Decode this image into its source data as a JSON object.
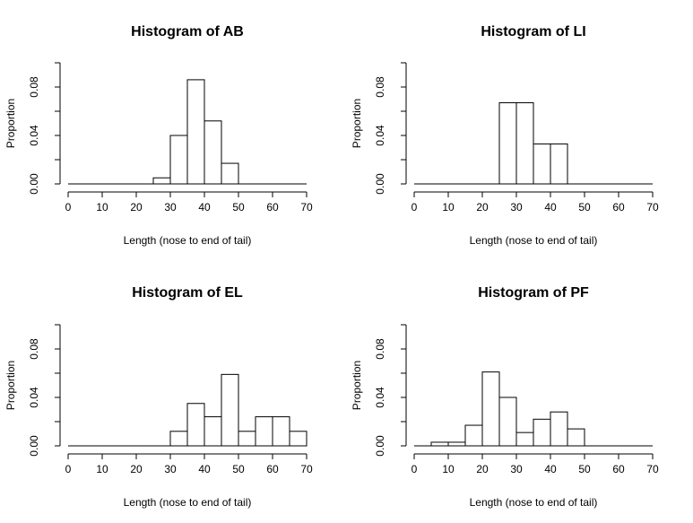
{
  "chart_data": [
    {
      "type": "bar",
      "title": "Histogram of AB",
      "xlabel": "Length (nose to end of tail)",
      "ylabel": "Proportion",
      "xlim": [
        0,
        70
      ],
      "ylim": [
        0,
        0.1
      ],
      "x_ticks": [
        "0",
        "10",
        "20",
        "30",
        "40",
        "50",
        "60",
        "70"
      ],
      "y_ticks": [
        "0.00",
        "0.04",
        "0.08"
      ],
      "bin_edges": [
        25,
        30,
        35,
        40,
        45,
        50
      ],
      "values": [
        0.005,
        0.04,
        0.086,
        0.052,
        0.017
      ]
    },
    {
      "type": "bar",
      "title": "Histogram of LI",
      "xlabel": "Length (nose to end of tail)",
      "ylabel": "Proportion",
      "xlim": [
        0,
        70
      ],
      "ylim": [
        0,
        0.1
      ],
      "x_ticks": [
        "0",
        "10",
        "20",
        "30",
        "40",
        "50",
        "60",
        "70"
      ],
      "y_ticks": [
        "0.00",
        "0.04",
        "0.08"
      ],
      "bin_edges": [
        25,
        30,
        35,
        40,
        45
      ],
      "values": [
        0.067,
        0.067,
        0.033,
        0.033
      ]
    },
    {
      "type": "bar",
      "title": "Histogram of EL",
      "xlabel": "Length (nose to end of tail)",
      "ylabel": "Proportion",
      "xlim": [
        0,
        70
      ],
      "ylim": [
        0,
        0.1
      ],
      "x_ticks": [
        "0",
        "10",
        "20",
        "30",
        "40",
        "50",
        "60",
        "70"
      ],
      "y_ticks": [
        "0.00",
        "0.04",
        "0.08"
      ],
      "bin_edges": [
        30,
        35,
        40,
        45,
        50,
        55,
        60,
        65,
        70
      ],
      "values": [
        0.012,
        0.035,
        0.024,
        0.059,
        0.012,
        0.024,
        0.024,
        0.012
      ]
    },
    {
      "type": "bar",
      "title": "Histogram of PF",
      "xlabel": "Length (nose to end of tail)",
      "ylabel": "Proportion",
      "xlim": [
        0,
        70
      ],
      "ylim": [
        0,
        0.1
      ],
      "x_ticks": [
        "0",
        "10",
        "20",
        "30",
        "40",
        "50",
        "60",
        "70"
      ],
      "y_ticks": [
        "0.00",
        "0.04",
        "0.08"
      ],
      "bin_edges": [
        5,
        10,
        15,
        20,
        25,
        30,
        35,
        40,
        45,
        50
      ],
      "values": [
        0.003,
        0.003,
        0.017,
        0.061,
        0.04,
        0.011,
        0.022,
        0.028,
        0.014
      ]
    }
  ]
}
